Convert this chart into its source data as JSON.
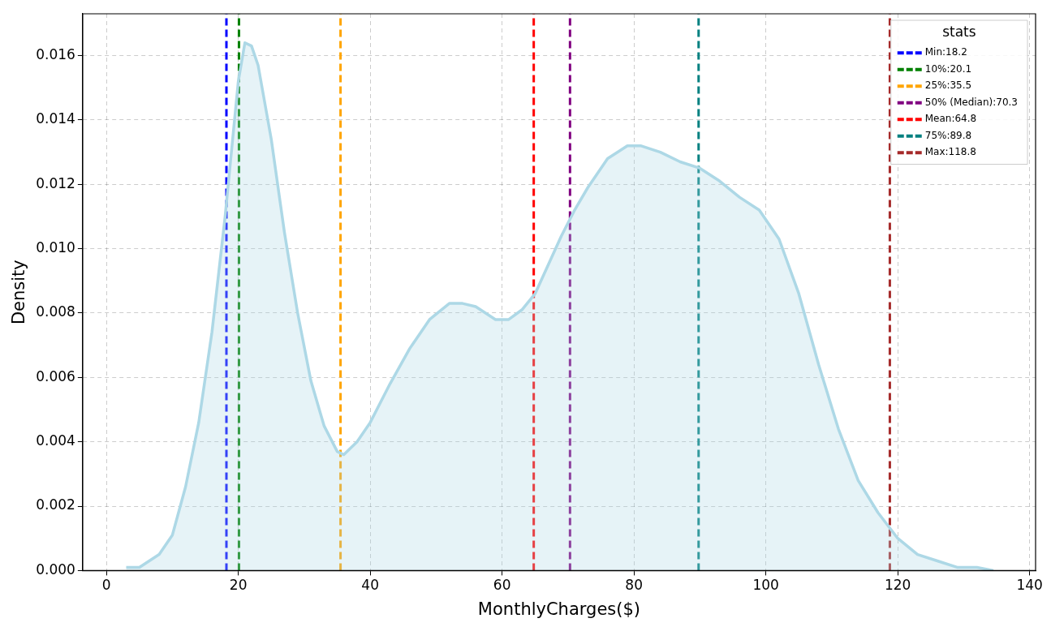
{
  "chart_data": {
    "type": "area",
    "xlabel": "MonthlyCharges($)",
    "ylabel": "Density",
    "legend_title": "stats",
    "legend": "top right",
    "grid": true,
    "line_style": "solid",
    "marker": "none",
    "xlim": [
      -3.6,
      140.9
    ],
    "ylim": [
      0,
      0.0173
    ],
    "xticks": [
      0,
      20,
      40,
      60,
      80,
      100,
      120,
      140
    ],
    "yticks": [
      {
        "value": 0,
        "label": "0.000"
      },
      {
        "value": 0.002,
        "label": "0.002"
      },
      {
        "value": 0.004,
        "label": "0.004"
      },
      {
        "value": 0.006,
        "label": "0.006"
      },
      {
        "value": 0.008,
        "label": "0.008"
      },
      {
        "value": 0.01,
        "label": "0.010"
      },
      {
        "value": 0.012,
        "label": "0.012"
      },
      {
        "value": 0.014,
        "label": "0.014"
      },
      {
        "value": 0.016,
        "label": "0.016"
      }
    ],
    "series": [
      {
        "color": "#add8e6",
        "x": [
          3,
          5,
          8,
          10,
          12,
          14,
          16,
          18,
          19,
          20,
          21,
          22,
          23,
          25,
          27,
          29,
          31,
          33,
          35,
          36,
          38,
          40,
          43,
          46,
          49,
          52,
          54,
          56,
          59,
          61,
          63,
          65,
          67,
          69,
          71,
          73,
          76,
          79,
          81,
          84,
          87,
          90,
          93,
          96,
          99,
          102,
          105,
          108,
          111,
          114,
          117,
          120,
          123,
          126,
          129,
          132,
          134.5
        ],
        "values": [
          0.0001,
          0.0001,
          0.0005,
          0.0011,
          0.0026,
          0.0046,
          0.0074,
          0.011,
          0.0131,
          0.0152,
          0.0164,
          0.0163,
          0.0157,
          0.0134,
          0.0105,
          0.008,
          0.0059,
          0.0045,
          0.0037,
          0.0036,
          0.004,
          0.0046,
          0.0058,
          0.0069,
          0.0078,
          0.0083,
          0.0083,
          0.0082,
          0.0078,
          0.0078,
          0.0081,
          0.0086,
          0.0095,
          0.0104,
          0.0112,
          0.0119,
          0.0128,
          0.0132,
          0.0132,
          0.013,
          0.0127,
          0.0125,
          0.0121,
          0.0116,
          0.0112,
          0.0103,
          0.0086,
          0.0064,
          0.0044,
          0.0028,
          0.0018,
          0.001,
          0.0005,
          0.0003,
          0.0001,
          0.0001,
          0
        ]
      },
      {
        "type": "line",
        "name": "Min:18.2",
        "color": "#0000ff",
        "line_style": "dashed",
        "x": [
          18.2,
          18.2
        ],
        "values": [
          0,
          0.0173
        ]
      },
      {
        "type": "line",
        "name": "10%:20.1",
        "color": "#008000",
        "line_style": "dashed",
        "x": [
          20.1,
          20.1
        ],
        "values": [
          0,
          0.0173
        ]
      },
      {
        "type": "line",
        "name": "25%:35.5",
        "color": "#ffa500",
        "line_style": "dashed",
        "x": [
          35.5,
          35.5
        ],
        "values": [
          0,
          0.0173
        ]
      },
      {
        "type": "line",
        "name": "50% (Median):70.3",
        "color": "#800080",
        "line_style": "dashed",
        "x": [
          70.3,
          70.3
        ],
        "values": [
          0,
          0.0173
        ]
      },
      {
        "type": "line",
        "name": "Mean:64.8",
        "color": "#ff0000",
        "line_style": "dashed",
        "x": [
          64.8,
          64.8
        ],
        "values": [
          0,
          0.0173
        ]
      },
      {
        "type": "line",
        "name": "75%:89.8",
        "color": "#008080",
        "line_style": "dashed",
        "x": [
          89.8,
          89.8
        ],
        "values": [
          0,
          0.0173
        ]
      },
      {
        "type": "line",
        "name": "Max:118.8",
        "color": "#a52a2a",
        "line_style": "dashed",
        "x": [
          118.8,
          118.8
        ],
        "values": [
          0,
          0.0173
        ]
      }
    ]
  }
}
